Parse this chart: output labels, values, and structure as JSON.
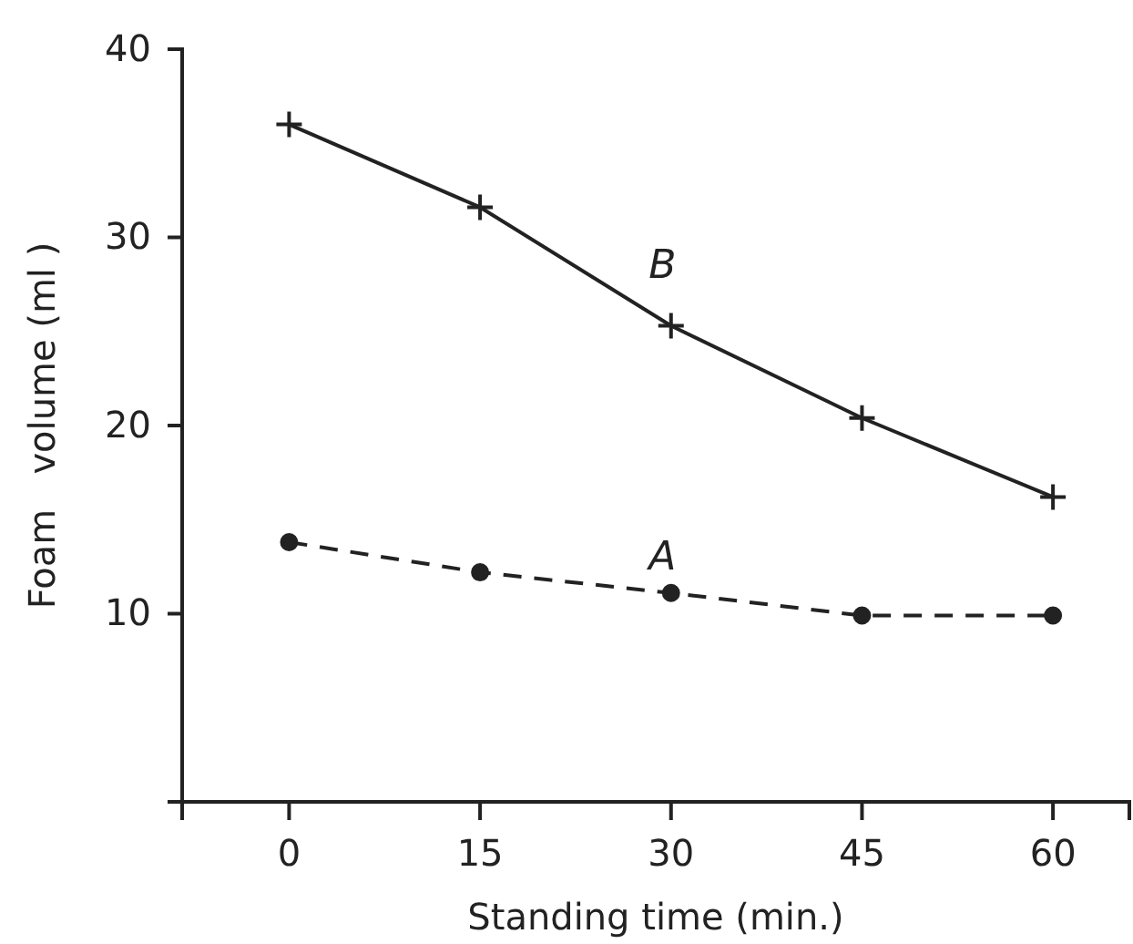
{
  "chart_data": {
    "type": "line",
    "xlabel": "Standing time (min.)",
    "ylabel": "Foam   volume (ml )",
    "x": [
      0,
      15,
      30,
      45,
      60
    ],
    "series": [
      {
        "name": "B",
        "color": "#222222",
        "marker": "cross",
        "line_style": "solid",
        "values": [
          36,
          31.6,
          25.3,
          20.4,
          16.2
        ]
      },
      {
        "name": "A",
        "color": "#222222",
        "marker": "circle",
        "line_style": "dashed",
        "values": [
          13.8,
          12.2,
          11.1,
          9.9,
          9.9
        ]
      }
    ],
    "xlim": [
      -8.4,
      66
    ],
    "ylim": [
      0,
      40
    ],
    "xticks": [
      0,
      15,
      30,
      45,
      60
    ],
    "yticks": [
      10,
      20,
      30,
      40
    ],
    "grid": false,
    "legend": false
  }
}
